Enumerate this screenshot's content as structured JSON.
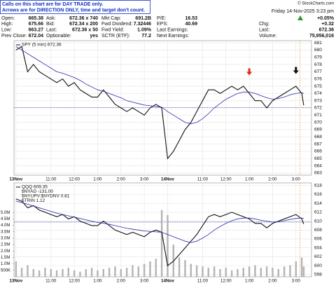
{
  "header": {
    "notice": [
      "Calls on this chart are for DAY TRADE only.",
      "Arrows are for DIRECTION ONLY, time and target don't count."
    ],
    "copyright": "© StockCharts.com",
    "date": "Friday 14-Nov-2025  3:23 pm",
    "columns": [
      {
        "rows": [
          {
            "label": "Open:",
            "value": "665.38"
          },
          {
            "label": "High:",
            "value": "675.66"
          },
          {
            "label": "Low:",
            "value": "663.27"
          },
          {
            "label": "Prev Close:",
            "value": "672.04"
          }
        ]
      },
      {
        "rows": [
          {
            "label": "Ask:",
            "value": "672.36 x 740"
          },
          {
            "label": "Bid:",
            "value": "672.34 x 200"
          },
          {
            "label": "Last:",
            "value": "672.36 x 50"
          },
          {
            "label": "Optionable:",
            "value": "yes"
          }
        ]
      },
      {
        "rows": [
          {
            "label": "Mkt Cap:",
            "value": "691.2B"
          },
          {
            "label": "Fwd Dividend:",
            "value": "7.32446"
          },
          {
            "label": "Fwd Yield:",
            "value": "1.09%"
          },
          {
            "label": "SCTR (ETF):",
            "value": "77.2"
          }
        ]
      },
      {
        "rows": [
          {
            "label": "P/E:",
            "value": "16.53"
          },
          {
            "label": "EPS:",
            "value": "40.69"
          },
          {
            "label": "Last Earnings:"
          },
          {
            "label": "Next Earnings:"
          }
        ]
      },
      {
        "rows": [
          {
            "value": "+0.05%"
          },
          {
            "label": "Chg:",
            "value": "+0.32"
          },
          {
            "label": "Last:",
            "value": "672.36"
          },
          {
            "label": "Volume:",
            "value": "75,956,016"
          }
        ]
      }
    ]
  },
  "chart_data": [
    {
      "type": "line",
      "title": "SPY (5 min) 672.36",
      "grid": true,
      "x": [
        0,
        3,
        6,
        9,
        12,
        15,
        18,
        21,
        24,
        27,
        30,
        33,
        36,
        39,
        42,
        45,
        48,
        51,
        54,
        57,
        60,
        63,
        66,
        69,
        72,
        75,
        78,
        81,
        84,
        87,
        90,
        93,
        96,
        99,
        102,
        105,
        108,
        111,
        114,
        117,
        120,
        123,
        126,
        129,
        132,
        135,
        138,
        141,
        144,
        147,
        148
      ],
      "xlim": [
        -1,
        152
      ],
      "xticks": [
        {
          "value": 0,
          "label": "13Nov"
        },
        {
          "value": 18,
          "label": "11:00"
        },
        {
          "value": 30,
          "label": "12:00"
        },
        {
          "value": 42,
          "label": "1:00"
        },
        {
          "value": 54,
          "label": "2:00"
        },
        {
          "value": 66,
          "label": "3:00"
        },
        {
          "value": 78,
          "label": "14Nov"
        },
        {
          "value": 96,
          "label": "11:00"
        },
        {
          "value": 108,
          "label": "12:00"
        },
        {
          "value": 120,
          "label": "1:00"
        },
        {
          "value": 132,
          "label": "2:00"
        },
        {
          "value": 144,
          "label": "3:00"
        }
      ],
      "ylim": [
        662.7,
        681.3
      ],
      "yticks": [
        663,
        664,
        665,
        666,
        667,
        668,
        669,
        670,
        671,
        672,
        673,
        674,
        675,
        676,
        677,
        678,
        679,
        680,
        681
      ],
      "series": [
        {
          "color": "#111111",
          "values": [
            680,
            680.5,
            677,
            678,
            677,
            676.5,
            676,
            675.5,
            676,
            675,
            675.5,
            674.5,
            674,
            673.5,
            673.5,
            674.5,
            673.5,
            672.5,
            672,
            671.5,
            672,
            671.5,
            671,
            672,
            672.5,
            672,
            665,
            666,
            667.5,
            669,
            670,
            671.5,
            673,
            674.5,
            674.5,
            674,
            674.5,
            675,
            674.5,
            675,
            674,
            673,
            673,
            672,
            673,
            673.5,
            674,
            674.5,
            675,
            674,
            672.36
          ]
        },
        {
          "color": "#2b2bb0",
          "values": [
            680.5,
            680,
            679.5,
            679,
            678.5,
            678,
            677.5,
            677,
            676.8,
            676.5,
            676.2,
            675.8,
            675.3,
            674.9,
            674.5,
            674.3,
            674,
            673.7,
            673.4,
            673,
            672.8,
            672.6,
            672.4,
            672.3,
            672.2,
            672.1,
            671.5,
            671,
            670.5,
            670,
            669.8,
            670,
            670.5,
            671.2,
            672,
            672.6,
            673.2,
            673.6,
            674,
            674.2,
            674.2,
            674,
            673.7,
            673.4,
            673.2,
            673.3,
            673.5,
            673.8,
            674,
            674.1,
            674
          ]
        }
      ],
      "reference_lines": [
        {
          "y": 672.04,
          "color": "#1a1a9a"
        }
      ],
      "vertical_lines": [
        {
          "x": 146,
          "color": "#f0a020"
        }
      ],
      "markers": [
        {
          "x": 120,
          "y": 676.6,
          "color": "#e8281c"
        },
        {
          "x": 144,
          "y": 676.8,
          "color": "#111111"
        }
      ]
    },
    {
      "type": "line",
      "grid": true,
      "x": [
        0,
        3,
        6,
        9,
        12,
        15,
        18,
        21,
        24,
        27,
        30,
        33,
        36,
        39,
        42,
        45,
        48,
        51,
        54,
        57,
        60,
        63,
        66,
        69,
        72,
        75,
        78,
        81,
        84,
        87,
        90,
        93,
        96,
        99,
        102,
        105,
        108,
        111,
        114,
        117,
        120,
        123,
        126,
        129,
        132,
        135,
        138,
        141,
        144,
        147,
        148
      ],
      "xlim": [
        -1,
        152
      ],
      "xticks": [
        {
          "value": 0,
          "label": "13Nov"
        },
        {
          "value": 18,
          "label": "11:00"
        },
        {
          "value": 30,
          "label": "12:00"
        },
        {
          "value": 42,
          "label": "1:00"
        },
        {
          "value": 54,
          "label": "2:00"
        },
        {
          "value": 66,
          "label": "3:00"
        },
        {
          "value": 78,
          "label": "14Nov"
        },
        {
          "value": 96,
          "label": "11:00"
        },
        {
          "value": 108,
          "label": "12:00"
        },
        {
          "value": 120,
          "label": "1:00"
        },
        {
          "value": 132,
          "label": "2:00"
        },
        {
          "value": 144,
          "label": "3:00"
        }
      ],
      "ylim": [
        597.5,
        618.6
      ],
      "yticks": [
        598,
        600,
        602,
        604,
        606,
        608,
        610,
        612,
        614,
        616,
        618
      ],
      "y2lim": [
        0,
        7300000
      ],
      "y2ticks": [
        {
          "value": 500000,
          "label": "500K"
        },
        {
          "value": 1000000,
          "label": "1.0M"
        },
        {
          "value": 1500000,
          "label": "1.5M"
        },
        {
          "value": 2000000,
          "label": "2.0M"
        },
        {
          "value": 2500000,
          "label": "2.5M"
        },
        {
          "value": 3000000,
          "label": "3.0M"
        },
        {
          "value": 3500000,
          "label": "3.5M"
        },
        {
          "value": 4000000,
          "label": "4.0M"
        },
        {
          "value": 4500000,
          "label": "4.5M"
        },
        {
          "value": 5000000,
          "label": "5.0M"
        }
      ],
      "labels": [
        "$NYAD -131.00",
        "$NYUPV:$NYDNV 0.81",
        "$TRIN 1.12"
      ],
      "series": [
        {
          "type": "bar",
          "axis": "y2",
          "color": "#b4b4b4",
          "values": [
            1200000,
            700000,
            900000,
            600000,
            500000,
            700000,
            600000,
            500000,
            600000,
            700000,
            500000,
            400000,
            600000,
            700000,
            500000,
            600000,
            700000,
            800000,
            600000,
            700000,
            900000,
            800000,
            1000000,
            1200000,
            1400000,
            5200000,
            4800000,
            2500000,
            1500000,
            1300000,
            1000000,
            900000,
            800000,
            700000,
            800000,
            600000,
            700000,
            500000,
            600000,
            700000,
            800000,
            900000,
            700000,
            800000,
            700000,
            600000,
            800000,
            900000,
            1200000,
            1500000,
            800000
          ]
        },
        {
          "name": "QQQ 609.35",
          "color": "#111111",
          "values": [
            615,
            614.5,
            613,
            613.5,
            612.5,
            612,
            611.5,
            611,
            611.5,
            610.5,
            611,
            610,
            609.5,
            609,
            609,
            610,
            609,
            608,
            607.5,
            607,
            607.5,
            607,
            606.5,
            607.5,
            608,
            607.5,
            600,
            601,
            602.5,
            604,
            605.5,
            607,
            609,
            611,
            611.5,
            611,
            611.5,
            612,
            611.5,
            611,
            610.5,
            609.5,
            609.5,
            608.5,
            609.5,
            610,
            610.5,
            611,
            611.5,
            610.5,
            609.35
          ]
        },
        {
          "color": "#2b2bb0",
          "values": [
            614.5,
            614.2,
            613.8,
            613.4,
            613,
            612.6,
            612.2,
            611.8,
            611.5,
            611.2,
            610.9,
            610.6,
            610.3,
            610,
            609.7,
            609.5,
            609.3,
            609,
            608.7,
            608.4,
            608.2,
            608,
            607.8,
            607.7,
            607.6,
            607.5,
            607,
            606.5,
            606,
            605.5,
            605.2,
            605.5,
            606.2,
            607,
            608,
            608.8,
            609.5,
            610.1,
            610.5,
            610.7,
            610.7,
            610.5,
            610.2,
            610,
            609.8,
            609.9,
            610.1,
            610.4,
            610.6,
            610.7,
            610.6
          ]
        }
      ],
      "reference_lines": [
        {
          "y": 609.8,
          "color": "#1a1a9a"
        }
      ],
      "vertical_lines": [
        {
          "x": 146,
          "color": "#f0a020"
        }
      ]
    }
  ]
}
